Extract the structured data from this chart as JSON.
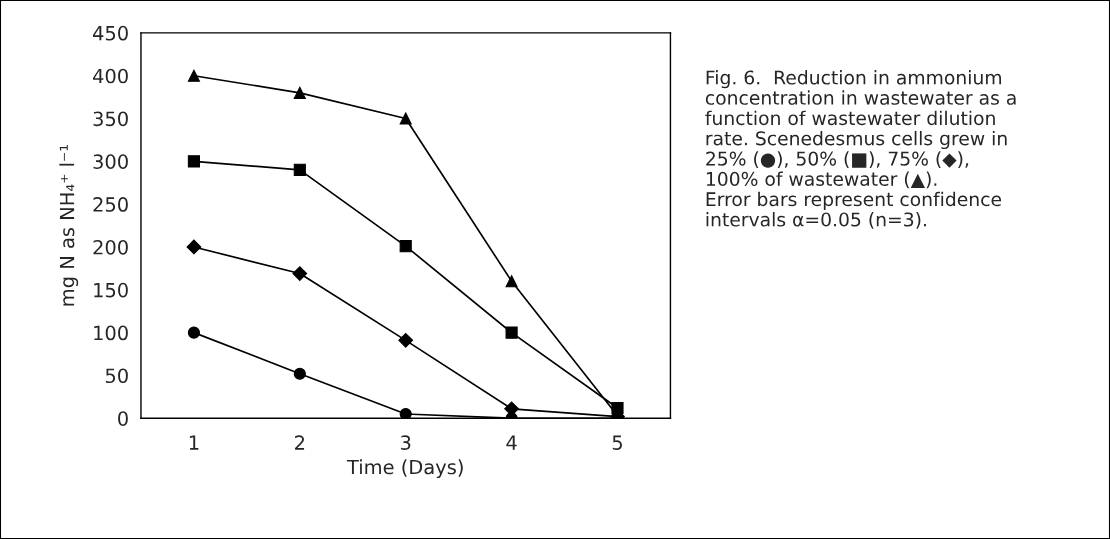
{
  "chart_data": {
    "type": "line",
    "xlabel": "Time (Days)",
    "ylabel": "mg N as NH₄⁺ l⁻¹",
    "categories": [
      "1",
      "2",
      "3",
      "4",
      "5"
    ],
    "series": [
      {
        "color": "#000000",
        "marker": "circle",
        "values": [
          100,
          52,
          5,
          0,
          0
        ]
      },
      {
        "color": "#000000",
        "marker": "square",
        "values": [
          300,
          290,
          201,
          100,
          12
        ]
      },
      {
        "color": "#000000",
        "marker": "diamond",
        "values": [
          200,
          169,
          91,
          11,
          2
        ]
      },
      {
        "color": "#000000",
        "marker": "triangle",
        "values": [
          400,
          380,
          350,
          160,
          3
        ]
      }
    ],
    "ylim": [
      0,
      450
    ],
    "yticks": [
      0,
      50,
      100,
      150,
      200,
      250,
      300,
      350,
      400,
      450
    ],
    "grid": false,
    "legend": false,
    "line_style": "solid",
    "annotations": [
      "Fig. 6.  Reduction in ammonium\nconcentration in wastewater as a\nfunction of wastewater dilution\nrate. Scenedesmus cells grew in\n25% (●), 50% (■), 75% (◆),\n100% of wastewater (▲).\nError bars represent confidence\nintervals α=0.05 (n=3)."
    ]
  }
}
